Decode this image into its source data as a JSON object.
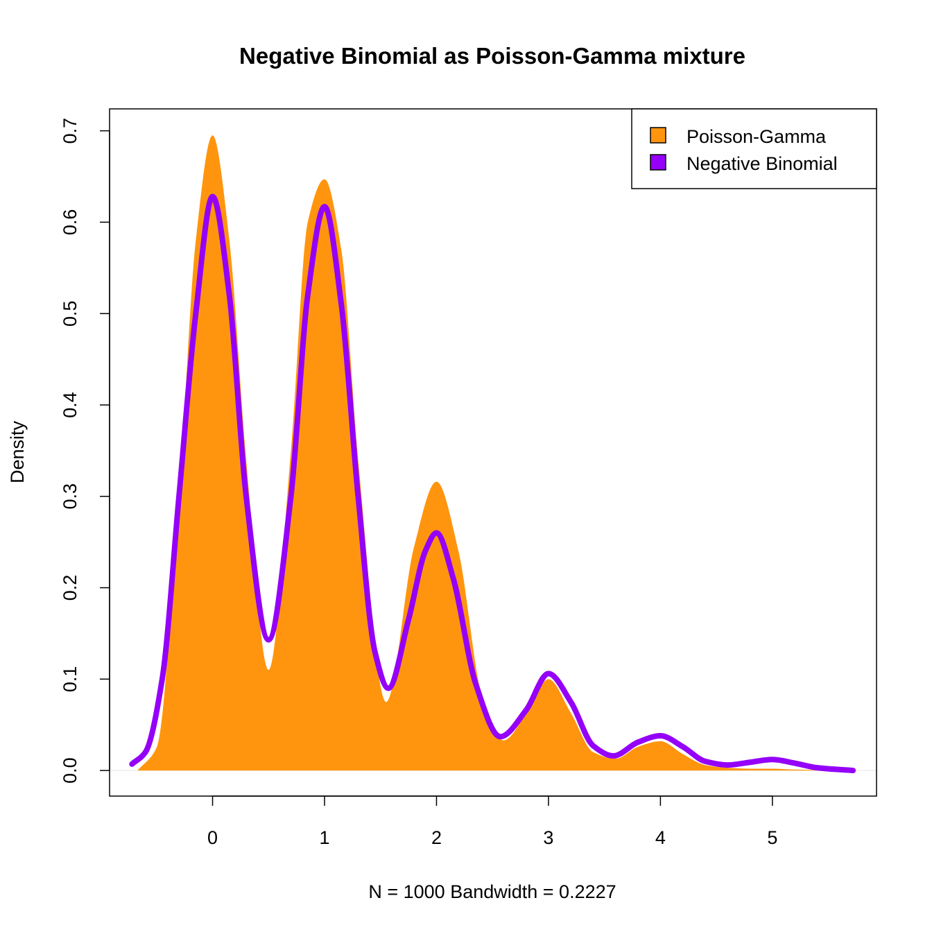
{
  "chart_data": {
    "type": "area",
    "title": "Negative Binomial as Poisson-Gamma mixture",
    "xlabel": "N = 1000   Bandwidth = 0.2227",
    "ylabel": "Density",
    "xlim": [
      -0.92,
      5.93
    ],
    "ylim": [
      -0.028,
      0.724
    ],
    "x_ticks": [
      "0",
      "1",
      "2",
      "3",
      "4",
      "5"
    ],
    "y_ticks": [
      "0.0",
      "0.1",
      "0.2",
      "0.3",
      "0.4",
      "0.5",
      "0.6",
      "0.7"
    ],
    "grid": false,
    "legend_position": "top-right",
    "series": [
      {
        "name": "Poisson-Gamma",
        "kind": "area",
        "color": "#FF950E",
        "x": [
          -0.67,
          -0.5,
          -0.3,
          -0.15,
          0.0,
          0.15,
          0.3,
          0.5,
          0.7,
          0.85,
          1.0,
          1.15,
          1.3,
          1.55,
          1.8,
          2.0,
          2.2,
          2.4,
          2.6,
          2.8,
          3.0,
          3.2,
          3.4,
          3.6,
          3.8,
          4.0,
          4.2,
          4.4,
          4.6,
          4.8,
          5.0,
          5.2,
          5.71
        ],
        "y": [
          0.0,
          0.025,
          0.3,
          0.58,
          0.695,
          0.58,
          0.34,
          0.11,
          0.35,
          0.6,
          0.647,
          0.57,
          0.34,
          0.075,
          0.245,
          0.316,
          0.238,
          0.085,
          0.033,
          0.062,
          0.1,
          0.063,
          0.02,
          0.013,
          0.026,
          0.032,
          0.018,
          0.006,
          0.003,
          0.002,
          0.002,
          0.001,
          0.0
        ]
      },
      {
        "name": "Negative Binomial",
        "kind": "line",
        "color": "#9400F8",
        "x": [
          -0.72,
          -0.6,
          -0.45,
          -0.3,
          -0.15,
          0.0,
          0.15,
          0.3,
          0.5,
          0.7,
          0.85,
          1.0,
          1.15,
          1.3,
          1.45,
          1.57,
          1.75,
          1.9,
          2.0,
          2.15,
          2.35,
          2.57,
          2.8,
          3.0,
          3.2,
          3.4,
          3.58,
          3.8,
          4.0,
          4.2,
          4.4,
          4.6,
          4.8,
          5.0,
          5.2,
          5.4,
          5.72
        ],
        "y": [
          0.007,
          0.02,
          0.1,
          0.3,
          0.5,
          0.628,
          0.52,
          0.3,
          0.143,
          0.3,
          0.52,
          0.617,
          0.51,
          0.3,
          0.13,
          0.09,
          0.165,
          0.24,
          0.26,
          0.21,
          0.095,
          0.037,
          0.066,
          0.106,
          0.075,
          0.027,
          0.016,
          0.031,
          0.038,
          0.026,
          0.01,
          0.006,
          0.009,
          0.012,
          0.008,
          0.003,
          0.0
        ]
      }
    ]
  }
}
